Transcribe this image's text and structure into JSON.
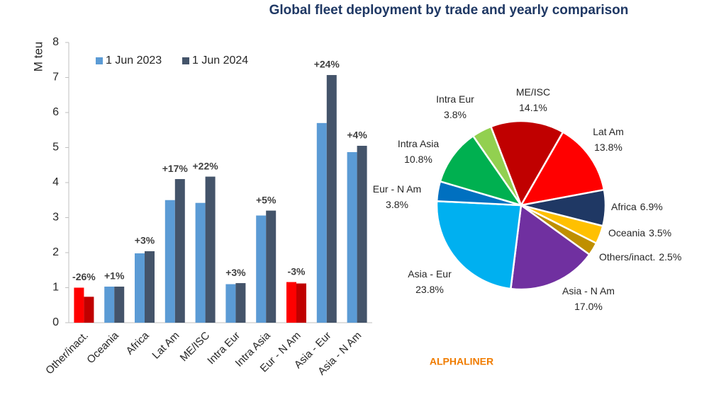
{
  "title": "Global fleet deployment by trade and yearly comparison",
  "source": "ALPHALINER",
  "chart_data": [
    {
      "type": "bar",
      "y_label": "M teu",
      "categories": [
        "Other/inact.",
        "Oceania",
        "Africa",
        "Lat Am",
        "ME/ISC",
        "Intra Eur",
        "Intra Asia",
        "Eur - N Am",
        "Asia - Eur",
        "Asia - N Am"
      ],
      "series": [
        {
          "name": "1 Jun 2023",
          "color": "#5b9bd5",
          "point_colors": [
            "#ff0000",
            "#5b9bd5",
            "#5b9bd5",
            "#5b9bd5",
            "#5b9bd5",
            "#5b9bd5",
            "#5b9bd5",
            "#ff0000",
            "#5b9bd5",
            "#5b9bd5"
          ],
          "values": [
            1.0,
            1.03,
            1.98,
            3.5,
            3.42,
            1.1,
            3.06,
            1.16,
            5.7,
            4.87
          ]
        },
        {
          "name": "1 Jun 2024",
          "color": "#44546a",
          "point_colors": [
            "#c00000",
            "#44546a",
            "#44546a",
            "#44546a",
            "#44546a",
            "#44546a",
            "#44546a",
            "#c00000",
            "#44546a",
            "#44546a"
          ],
          "values": [
            0.74,
            1.03,
            2.04,
            4.1,
            4.17,
            1.13,
            3.2,
            1.12,
            7.07,
            5.05
          ]
        }
      ],
      "annotations": [
        "-26%",
        "+1%",
        "+3%",
        "+17%",
        "+22%",
        "+3%",
        "+5%",
        "-3%",
        "+24%",
        "+4%"
      ],
      "ylim": [
        0,
        8
      ],
      "yticks": [
        0,
        1,
        2,
        3,
        4,
        5,
        6,
        7,
        8
      ],
      "grid": false,
      "legend": "top"
    },
    {
      "type": "pie",
      "categories": [
        "ME/ISC",
        "Lat Am",
        "Africa",
        "Oceania",
        "Others/inact.",
        "Asia - N Am",
        "Asia - Eur",
        "Eur - N Am",
        "Intra Asia",
        "Intra Eur"
      ],
      "values": [
        14.1,
        13.8,
        6.9,
        3.5,
        2.5,
        17.0,
        23.8,
        3.8,
        10.8,
        3.8
      ],
      "value_labels": [
        "14.1%",
        "13.8%",
        "6.9%",
        "3.5%",
        "2.5%",
        "17.0%",
        "23.8%",
        "3.8%",
        "10.8%",
        "3.8%"
      ],
      "colors": [
        "#c00000",
        "#ff0000",
        "#1f3864",
        "#ffc000",
        "#bf8f00",
        "#7030a0",
        "#00b0f0",
        "#0070c0",
        "#00b050",
        "#92d050"
      ]
    }
  ]
}
